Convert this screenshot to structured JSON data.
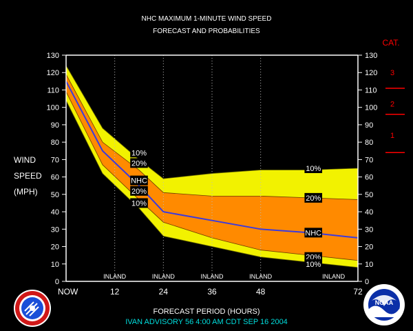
{
  "header": {
    "title": "NHC MAXIMUM 1-MINUTE WIND SPEED",
    "subtitle": "FORECAST AND PROBABILITIES"
  },
  "ylabel_lines": [
    "WIND",
    "SPEED",
    "(MPH)"
  ],
  "xlabel": "FORECAST PERIOD (HOURS)",
  "footer": "IVAN   ADVISORY  56  4:00  AM  CDT  SEP  16  2004",
  "category_header": "CAT.",
  "categories": [
    {
      "label": "3",
      "value": 120
    },
    {
      "label": "2",
      "value": 102
    },
    {
      "label": "1",
      "value": 84
    }
  ],
  "category_thresholds": [
    111,
    96,
    74
  ],
  "logos": {
    "left": "NOAA National Weather Service logo",
    "right": "NOAA"
  },
  "colors": {
    "background": "#000000",
    "yellow": "#f2f200",
    "orange": "#ff8a00",
    "nhc_line": "#3a3ae0",
    "axes": "#ffffff",
    "category_text": "#ff0000",
    "footer": "#00dddd"
  },
  "chart_data": {
    "type": "area",
    "title": "NHC MAXIMUM 1-MINUTE WIND SPEED",
    "subtitle": "FORECAST AND PROBABILITIES",
    "xlabel": "FORECAST PERIOD (HOURS)",
    "ylabel": "WIND SPEED (MPH)",
    "xlim": [
      0,
      72
    ],
    "ylim": [
      0,
      130
    ],
    "x_ticks": [
      {
        "value": 0,
        "label": "NOW"
      },
      {
        "value": 12,
        "label": "12"
      },
      {
        "value": 24,
        "label": "24"
      },
      {
        "value": 36,
        "label": "36"
      },
      {
        "value": 48,
        "label": "48"
      },
      {
        "value": 72,
        "label": "72"
      }
    ],
    "y_ticks": [
      0,
      10,
      20,
      30,
      40,
      50,
      60,
      70,
      80,
      90,
      100,
      110,
      120,
      130
    ],
    "vertical_gridlines": [
      12,
      24,
      36,
      48
    ],
    "inland_labels": [
      {
        "x": 12,
        "label": "INLAND"
      },
      {
        "x": 24,
        "label": "INLAND"
      },
      {
        "x": 36,
        "label": "INLAND"
      },
      {
        "x": 48,
        "label": "INLAND"
      },
      {
        "x": 66,
        "label": "INLAND"
      }
    ],
    "x": [
      0,
      9,
      18,
      24,
      36,
      48,
      60,
      72
    ],
    "series": [
      {
        "name": "10%",
        "role": "upper_outer",
        "values": [
          124,
          88,
          70,
          59,
          62,
          64,
          64,
          65
        ]
      },
      {
        "name": "20%",
        "role": "upper_inner",
        "values": [
          119,
          80,
          64,
          51,
          49,
          49,
          48,
          47
        ]
      },
      {
        "name": "NHC",
        "role": "forecast",
        "values": [
          115,
          75,
          55,
          40,
          35,
          30,
          28,
          25
        ]
      },
      {
        "name": "20%",
        "role": "lower_inner",
        "values": [
          109,
          67,
          47,
          34,
          25,
          18,
          15,
          12
        ]
      },
      {
        "name": "10%",
        "role": "lower_outer",
        "values": [
          104,
          62,
          42,
          26,
          20,
          14,
          11,
          8
        ]
      }
    ],
    "annotations": [
      {
        "text": "10%",
        "x": 18,
        "y": 74
      },
      {
        "text": "20%",
        "x": 18,
        "y": 68
      },
      {
        "text": "NHC",
        "x": 18,
        "y": 58
      },
      {
        "text": "20%",
        "x": 18,
        "y": 52
      },
      {
        "text": "10%",
        "x": 18,
        "y": 45
      },
      {
        "text": "10%",
        "x": 61,
        "y": 65
      },
      {
        "text": "20%",
        "x": 61,
        "y": 48
      },
      {
        "text": "NHC",
        "x": 61,
        "y": 28
      },
      {
        "text": "20%",
        "x": 61,
        "y": 14
      },
      {
        "text": "10%",
        "x": 61,
        "y": 10
      }
    ]
  }
}
